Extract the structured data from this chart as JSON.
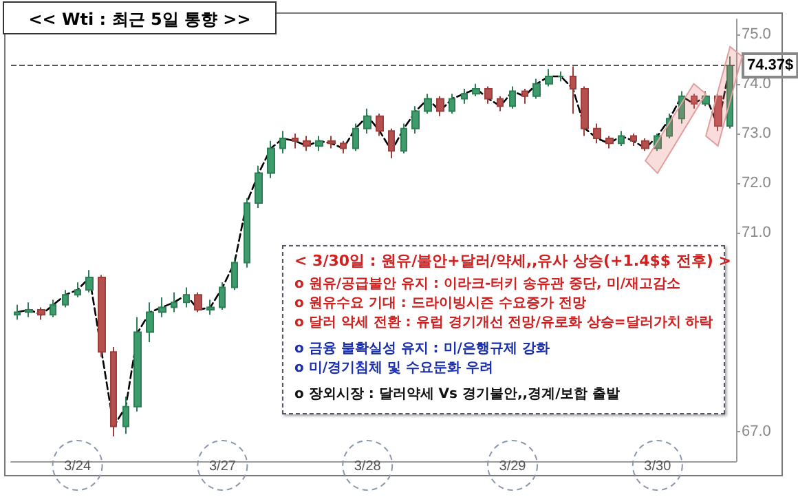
{
  "chart_data": {
    "type": "candlestick",
    "title": "<< Wti : 최근 5일 통향 >>",
    "categories": [
      null,
      null,
      null,
      null,
      null,
      "3/24",
      null,
      null,
      null,
      null,
      null,
      null,
      null,
      null,
      null,
      null,
      null,
      "3/27",
      null,
      null,
      null,
      null,
      null,
      null,
      null,
      null,
      null,
      null,
      null,
      "3/28",
      null,
      null,
      null,
      null,
      null,
      null,
      null,
      null,
      null,
      null,
      null,
      "3/29",
      null,
      null,
      null,
      null,
      null,
      null,
      null,
      null,
      null,
      null,
      null,
      "3/30",
      null,
      null,
      null,
      null,
      null,
      null
    ],
    "ohlc": [
      [
        69.35,
        69.55,
        69.25,
        69.4
      ],
      [
        69.4,
        69.6,
        69.3,
        69.45
      ],
      [
        69.45,
        69.5,
        69.25,
        69.35
      ],
      [
        69.35,
        69.65,
        69.3,
        69.55
      ],
      [
        69.55,
        69.85,
        69.5,
        69.75
      ],
      [
        69.75,
        70.0,
        69.7,
        69.85
      ],
      [
        69.85,
        70.25,
        69.8,
        70.1
      ],
      [
        70.1,
        70.15,
        68.5,
        68.6
      ],
      [
        68.6,
        68.7,
        66.9,
        67.1
      ],
      [
        67.1,
        67.7,
        66.95,
        67.5
      ],
      [
        67.5,
        69.3,
        67.4,
        69.0
      ],
      [
        69.0,
        69.6,
        68.8,
        69.4
      ],
      [
        69.4,
        69.7,
        69.3,
        69.5
      ],
      [
        69.5,
        69.8,
        69.4,
        69.6
      ],
      [
        69.6,
        69.9,
        69.5,
        69.75
      ],
      [
        69.75,
        69.8,
        69.4,
        69.45
      ],
      [
        69.45,
        69.65,
        69.35,
        69.5
      ],
      [
        69.5,
        70.0,
        69.45,
        69.9
      ],
      [
        69.9,
        70.5,
        69.85,
        70.4
      ],
      [
        70.4,
        71.7,
        70.3,
        71.6
      ],
      [
        71.6,
        72.35,
        71.5,
        72.2
      ],
      [
        72.2,
        72.85,
        72.1,
        72.7
      ],
      [
        72.7,
        73.05,
        72.6,
        72.9
      ],
      [
        72.9,
        73.0,
        72.7,
        72.85
      ],
      [
        72.85,
        72.95,
        72.65,
        72.75
      ],
      [
        72.75,
        72.95,
        72.65,
        72.85
      ],
      [
        72.85,
        72.95,
        72.7,
        72.8
      ],
      [
        72.8,
        72.85,
        72.6,
        72.7
      ],
      [
        72.7,
        73.2,
        72.65,
        73.1
      ],
      [
        73.1,
        73.5,
        73.0,
        73.35
      ],
      [
        73.35,
        73.4,
        72.95,
        73.05
      ],
      [
        73.05,
        73.1,
        72.5,
        72.65
      ],
      [
        72.65,
        73.2,
        72.6,
        73.1
      ],
      [
        73.1,
        73.55,
        73.0,
        73.45
      ],
      [
        73.45,
        73.8,
        73.4,
        73.7
      ],
      [
        73.7,
        73.75,
        73.35,
        73.45
      ],
      [
        73.45,
        73.8,
        73.4,
        73.7
      ],
      [
        73.7,
        73.9,
        73.6,
        73.8
      ],
      [
        73.8,
        74.0,
        73.75,
        73.9
      ],
      [
        73.9,
        73.95,
        73.6,
        73.7
      ],
      [
        73.7,
        73.75,
        73.45,
        73.55
      ],
      [
        73.55,
        73.95,
        73.5,
        73.85
      ],
      [
        73.85,
        73.9,
        73.6,
        73.75
      ],
      [
        73.75,
        74.1,
        73.7,
        74.0
      ],
      [
        74.0,
        74.3,
        73.95,
        74.15
      ],
      [
        74.15,
        74.25,
        74.05,
        74.15
      ],
      [
        74.15,
        74.35,
        73.4,
        73.9
      ],
      [
        73.9,
        73.95,
        72.95,
        73.1
      ],
      [
        73.1,
        73.2,
        72.8,
        72.9
      ],
      [
        72.9,
        72.95,
        72.7,
        72.8
      ],
      [
        72.8,
        73.05,
        72.75,
        72.95
      ],
      [
        72.95,
        73.0,
        72.75,
        72.85
      ],
      [
        72.85,
        72.9,
        72.65,
        72.7
      ],
      [
        72.7,
        73.0,
        72.65,
        72.95
      ],
      [
        72.95,
        73.4,
        72.9,
        73.3
      ],
      [
        73.3,
        73.85,
        73.2,
        73.75
      ],
      [
        73.75,
        73.8,
        73.5,
        73.6
      ],
      [
        73.6,
        73.85,
        73.55,
        73.75
      ],
      [
        73.75,
        73.8,
        73.05,
        73.15
      ],
      [
        73.15,
        74.55,
        73.1,
        74.37
      ]
    ],
    "series": [
      {
        "type": "line",
        "color": "#000000",
        "values": [
          69.4,
          69.45,
          69.35,
          69.55,
          69.75,
          69.85,
          70.1,
          68.6,
          67.1,
          67.5,
          69.0,
          69.4,
          69.5,
          69.6,
          69.75,
          69.45,
          69.5,
          69.9,
          70.4,
          71.6,
          72.2,
          72.7,
          72.9,
          72.85,
          72.75,
          72.85,
          72.8,
          72.7,
          73.1,
          73.35,
          73.05,
          72.65,
          73.1,
          73.45,
          73.7,
          73.45,
          73.7,
          73.8,
          73.9,
          73.7,
          73.55,
          73.85,
          73.75,
          74.0,
          74.15,
          74.15,
          73.9,
          73.1,
          72.9,
          72.8,
          72.95,
          72.85,
          72.7,
          72.95,
          73.3,
          73.75,
          73.6,
          73.75,
          73.15,
          74.37
        ]
      }
    ],
    "line_style": "dashed",
    "marker": "none",
    "ylim": [
      66.4,
      75.3
    ],
    "yticks": [
      {
        "value": 67,
        "label": "67.0"
      },
      {
        "value": 71,
        "label": "71.0"
      },
      {
        "value": 72,
        "label": "72.0"
      },
      {
        "value": 73,
        "label": "73.0"
      },
      {
        "value": 74,
        "label": "74.0"
      },
      {
        "value": 75,
        "label": "75.0"
      }
    ],
    "ref_lines": [
      {
        "axis": "y",
        "value": 74.37,
        "label": "74.37$",
        "color": "#555555",
        "line_style": "dashed"
      }
    ],
    "annotations": [
      "< 3/30일 : 원유/불안+달러/약세,,유사 상승(+1.4$$ 전후) >",
      "o 원유/공급불안 유지 : 이라크-터키 송유관 중단, 미/재고감소",
      "o 원유수요 기대 : 드라이빙시즌 수요증가 전망",
      "o 달러 약세 전환 : 유럽 경기개선 전망/유로화 상승=달러가치 하락",
      "o 금융 불확실성 유지 : 미/은행규제 강화",
      "o 미/경기침체 및 수요둔화 우려",
      "o 장외시장 : 달러약세 Vs 경기불안,,경계/보합 출발"
    ],
    "grid": false
  }
}
